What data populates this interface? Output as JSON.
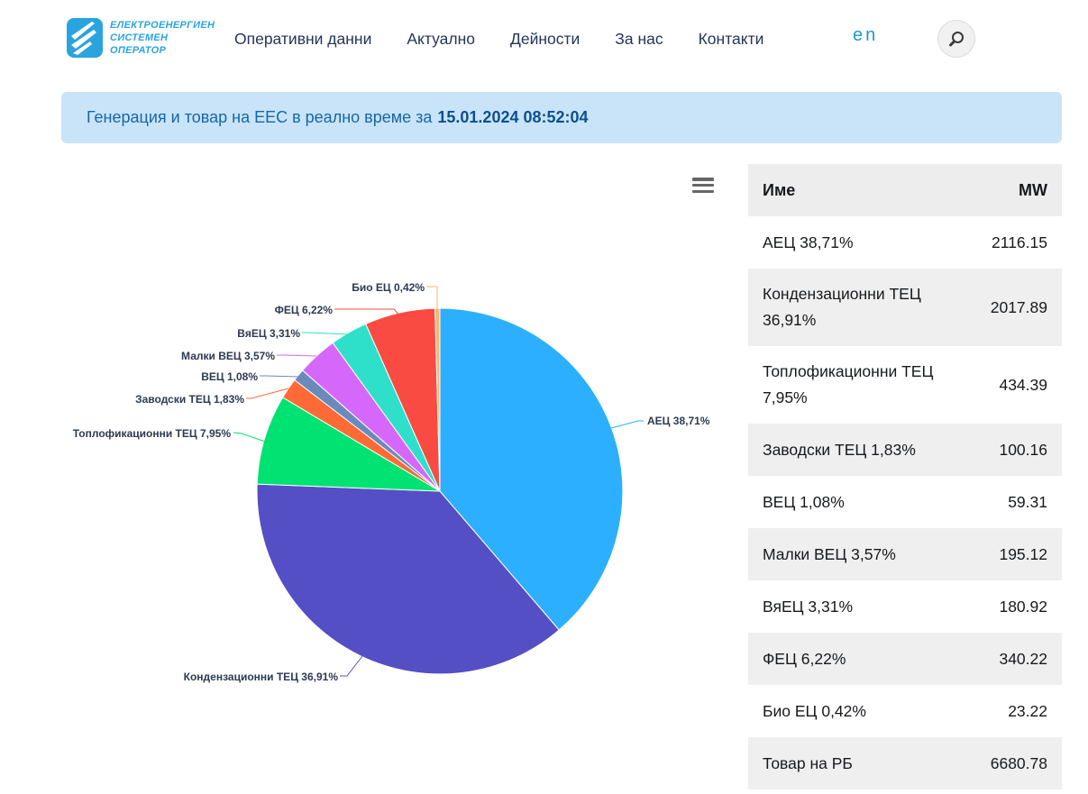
{
  "header": {
    "logo": {
      "icon": "eso-logo-icon",
      "line1": "ЕЛЕКТРОЕНЕРГИЕН",
      "line2": "СИСТЕМЕН",
      "line3": "ОПЕРАТОР",
      "brand_color": "#2aa4de"
    },
    "nav": [
      {
        "label": "Оперативни данни"
      },
      {
        "label": "Актуално"
      },
      {
        "label": "Дейности"
      },
      {
        "label": "За нас"
      },
      {
        "label": "Контакти"
      }
    ],
    "lang_toggle": "en",
    "search_icon": "magnifier"
  },
  "banner": {
    "text": "Генерация и товар на ЕЕС в реално време за",
    "datetime": "15.01.2024 08:52:04",
    "bg_color": "#c9e4f9"
  },
  "chart_data": {
    "type": "pie",
    "title": "Генерация и товар на ЕЕС в реално време",
    "unit": "MW",
    "legend_position": "data-labels-with-leader-lines",
    "start_angle_deg": 0,
    "direction": "clockwise",
    "slices": [
      {
        "name": "АЕЦ",
        "pct": 38.71,
        "mw": 2116.15,
        "color": "#2caffe"
      },
      {
        "name": "Кондензационни ТЕЦ",
        "pct": 36.91,
        "mw": 2017.89,
        "color": "#544fc5"
      },
      {
        "name": "Топлофикационни ТЕЦ",
        "pct": 7.95,
        "mw": 434.39,
        "color": "#00e272"
      },
      {
        "name": "Заводски ТЕЦ",
        "pct": 1.83,
        "mw": 100.16,
        "color": "#fe6a35"
      },
      {
        "name": "ВЕЦ",
        "pct": 1.08,
        "mw": 59.31,
        "color": "#6b8abc"
      },
      {
        "name": "Малки ВЕЦ",
        "pct": 3.57,
        "mw": 195.12,
        "color": "#d568fb"
      },
      {
        "name": "ВяЕЦ",
        "pct": 3.31,
        "mw": 180.92,
        "color": "#2ee0ca"
      },
      {
        "name": "ФЕЦ",
        "pct": 6.22,
        "mw": 340.22,
        "color": "#fa4b42"
      },
      {
        "name": "Био ЕЦ",
        "pct": 0.42,
        "mw": 23.22,
        "color": "#feb56a"
      }
    ],
    "load_row": {
      "name": "Товар на РБ",
      "mw": 6680.78
    }
  },
  "table": {
    "col_name": "Име",
    "col_mw": "MW"
  },
  "chart_menu_icon": "hamburger-context-menu"
}
